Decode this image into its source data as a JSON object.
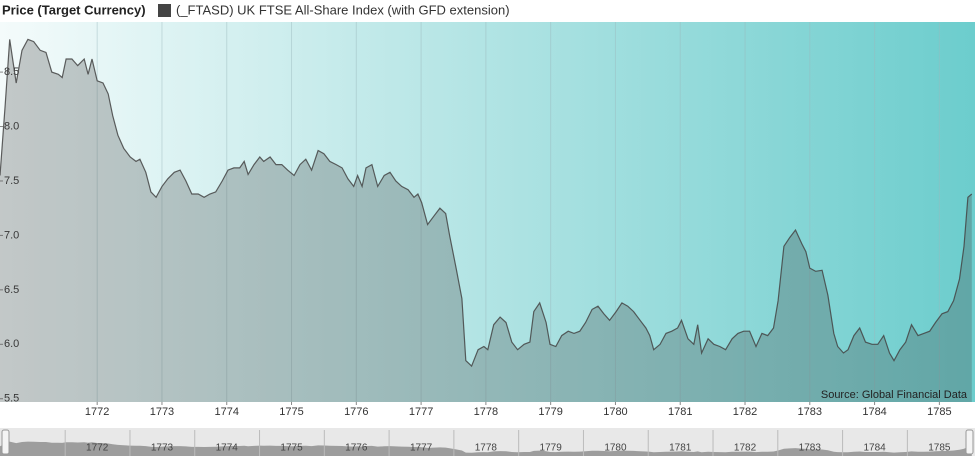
{
  "chart_data": {
    "type": "area",
    "y_label": "Price (Target Currency)",
    "annotation": "Source: Global Financial Data",
    "grid": "x",
    "xlim": [
      1770.5,
      1785.55
    ],
    "xticks": [
      1772,
      1773,
      1774,
      1775,
      1776,
      1777,
      1778,
      1779,
      1780,
      1781,
      1782,
      1783,
      1784,
      1785
    ],
    "ylim": [
      5.47,
      8.96
    ],
    "yticks": [
      5.5,
      {
        "value": 6,
        "label": "6.0"
      },
      6.5,
      {
        "value": 7,
        "label": "7.0"
      },
      7.5,
      {
        "value": 8,
        "label": "8.0"
      },
      8.5
    ],
    "x": [
      1770.5,
      1770.58,
      1770.65,
      1770.75,
      1770.84,
      1770.93,
      1771.02,
      1771.12,
      1771.21,
      1771.3,
      1771.4,
      1771.46,
      1771.52,
      1771.61,
      1771.7,
      1771.8,
      1771.86,
      1771.92,
      1772.0,
      1772.09,
      1772.17,
      1772.24,
      1772.32,
      1772.41,
      1772.51,
      1772.6,
      1772.66,
      1772.75,
      1772.83,
      1772.91,
      1773.0,
      1773.09,
      1773.19,
      1773.28,
      1773.37,
      1773.46,
      1773.56,
      1773.65,
      1773.74,
      1773.83,
      1773.93,
      1774.02,
      1774.11,
      1774.2,
      1774.27,
      1774.33,
      1774.42,
      1774.51,
      1774.57,
      1774.67,
      1774.76,
      1774.85,
      1774.94,
      1775.04,
      1775.13,
      1775.22,
      1775.31,
      1775.41,
      1775.5,
      1775.59,
      1775.69,
      1775.78,
      1775.87,
      1775.96,
      1776.02,
      1776.09,
      1776.15,
      1776.24,
      1776.33,
      1776.43,
      1776.52,
      1776.61,
      1776.7,
      1776.8,
      1776.89,
      1776.95,
      1777.01,
      1777.1,
      1777.2,
      1777.29,
      1777.38,
      1777.44,
      1777.54,
      1777.63,
      1777.69,
      1777.78,
      1777.88,
      1777.97,
      1778.03,
      1778.12,
      1778.22,
      1778.31,
      1778.4,
      1778.49,
      1778.59,
      1778.68,
      1778.74,
      1778.83,
      1778.93,
      1778.99,
      1779.08,
      1779.17,
      1779.27,
      1779.36,
      1779.45,
      1779.54,
      1779.64,
      1779.73,
      1779.82,
      1779.91,
      1780.01,
      1780.1,
      1780.19,
      1780.28,
      1780.38,
      1780.47,
      1780.53,
      1780.59,
      1780.69,
      1780.78,
      1780.87,
      1780.96,
      1781.02,
      1781.12,
      1781.21,
      1781.27,
      1781.33,
      1781.43,
      1781.52,
      1781.61,
      1781.7,
      1781.8,
      1781.89,
      1781.98,
      1782.07,
      1782.17,
      1782.26,
      1782.35,
      1782.44,
      1782.51,
      1782.6,
      1782.69,
      1782.78,
      1782.88,
      1782.94,
      1783.0,
      1783.09,
      1783.19,
      1783.28,
      1783.37,
      1783.43,
      1783.52,
      1783.59,
      1783.68,
      1783.77,
      1783.86,
      1783.96,
      1784.05,
      1784.14,
      1784.23,
      1784.3,
      1784.39,
      1784.48,
      1784.57,
      1784.67,
      1784.76,
      1784.85,
      1784.94,
      1785.04,
      1785.13,
      1785.22,
      1785.31,
      1785.38,
      1785.44,
      1785.5
    ],
    "series": [
      {
        "name": "(_FTASD) UK FTSE All-Share Index (with GFD extension)",
        "color": "#444444",
        "values": [
          7.55,
          8.2,
          8.8,
          8.4,
          8.7,
          8.8,
          8.78,
          8.7,
          8.68,
          8.5,
          8.48,
          8.45,
          8.62,
          8.62,
          8.56,
          8.62,
          8.48,
          8.62,
          8.42,
          8.4,
          8.3,
          8.1,
          7.92,
          7.8,
          7.72,
          7.68,
          7.7,
          7.58,
          7.4,
          7.35,
          7.45,
          7.52,
          7.58,
          7.6,
          7.5,
          7.38,
          7.38,
          7.35,
          7.38,
          7.4,
          7.5,
          7.6,
          7.62,
          7.62,
          7.68,
          7.56,
          7.65,
          7.72,
          7.68,
          7.72,
          7.65,
          7.65,
          7.6,
          7.55,
          7.65,
          7.7,
          7.6,
          7.78,
          7.75,
          7.68,
          7.65,
          7.62,
          7.52,
          7.45,
          7.55,
          7.45,
          7.62,
          7.65,
          7.45,
          7.55,
          7.58,
          7.5,
          7.45,
          7.42,
          7.35,
          7.38,
          7.3,
          7.1,
          7.18,
          7.25,
          7.2,
          7.0,
          6.7,
          6.42,
          5.85,
          5.8,
          5.95,
          5.98,
          5.95,
          6.18,
          6.25,
          6.2,
          6.02,
          5.95,
          6.0,
          6.02,
          6.3,
          6.38,
          6.2,
          6.0,
          5.98,
          6.08,
          6.12,
          6.1,
          6.12,
          6.2,
          6.32,
          6.35,
          6.28,
          6.22,
          6.3,
          6.38,
          6.35,
          6.3,
          6.22,
          6.15,
          6.08,
          5.95,
          6.0,
          6.1,
          6.12,
          6.15,
          6.22,
          6.05,
          6.0,
          6.18,
          5.92,
          6.05,
          6.0,
          5.98,
          5.95,
          6.05,
          6.1,
          6.12,
          6.12,
          5.98,
          6.1,
          6.08,
          6.15,
          6.4,
          6.9,
          6.98,
          7.05,
          6.92,
          6.85,
          6.7,
          6.67,
          6.68,
          6.45,
          6.1,
          5.98,
          5.92,
          5.95,
          6.08,
          6.15,
          6.02,
          6.0,
          6.0,
          6.08,
          5.92,
          5.85,
          5.95,
          6.02,
          6.18,
          6.08,
          6.1,
          6.12,
          6.2,
          6.28,
          6.3,
          6.4,
          6.6,
          6.9,
          7.35,
          7.38
        ]
      }
    ]
  }
}
